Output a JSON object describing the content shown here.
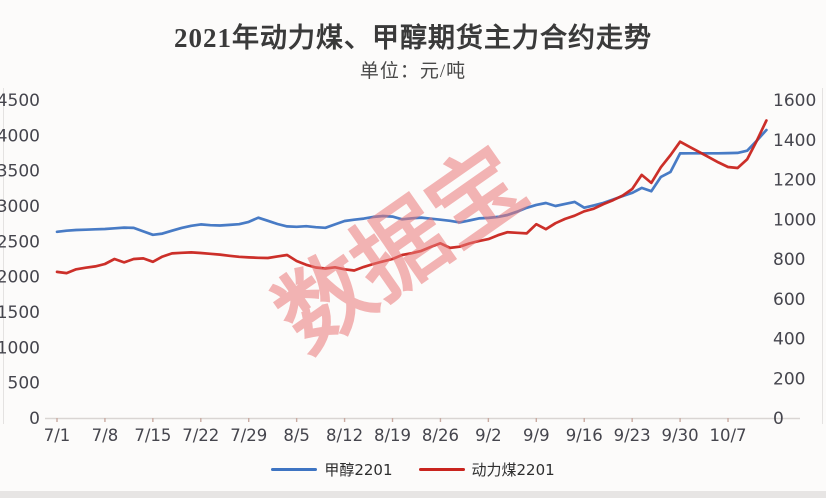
{
  "header": {
    "title": "2021年动力煤、甲醇期货主力合约走势",
    "subtitle": "单位：元/吨"
  },
  "watermark": {
    "text": "数据宝",
    "color": "rgba(233,120,120,0.55)"
  },
  "legend": {
    "items": [
      {
        "label": "甲醇2201",
        "color": "#3e74c2"
      },
      {
        "label": "动力煤2201",
        "color": "#c9241e"
      }
    ]
  },
  "chart_data": {
    "type": "line",
    "title": "2021年动力煤、甲醇期货主力合约走势",
    "subtitle": "单位：元/吨",
    "grid": false,
    "legend_position": "bottom",
    "x_labels": [
      "7/1",
      "7/8",
      "7/15",
      "7/22",
      "7/29",
      "8/5",
      "8/12",
      "8/19",
      "8/26",
      "9/2",
      "9/9",
      "9/16",
      "9/23",
      "9/30",
      "10/7"
    ],
    "points_per_label": 5,
    "left_axis": {
      "min": 0,
      "max": 4500,
      "step": 500,
      "ticks": [
        "4500",
        "4000",
        "3500",
        "3000",
        "2500",
        "2000",
        "1500",
        "1000",
        "500",
        "0"
      ]
    },
    "right_axis": {
      "min": 0,
      "max": 1600,
      "step": 200,
      "ticks": [
        "1600",
        "1400",
        "1200",
        "1000",
        "800",
        "600",
        "400",
        "200",
        "0"
      ]
    },
    "series": [
      {
        "name": "甲醇2201",
        "axis": "left",
        "color": "#3e74c2",
        "values": [
          2635,
          2650,
          2660,
          2665,
          2670,
          2675,
          2685,
          2695,
          2690,
          2640,
          2592,
          2610,
          2650,
          2690,
          2720,
          2740,
          2728,
          2724,
          2732,
          2742,
          2775,
          2835,
          2790,
          2745,
          2712,
          2705,
          2714,
          2700,
          2692,
          2740,
          2788,
          2806,
          2822,
          2846,
          2858,
          2850,
          2812,
          2826,
          2836,
          2820,
          2806,
          2790,
          2768,
          2795,
          2824,
          2832,
          2846,
          2872,
          2920,
          2974,
          3016,
          3042,
          3000,
          3030,
          3058,
          2976,
          3008,
          3044,
          3092,
          3140,
          3186,
          3256,
          3210,
          3412,
          3482,
          3744,
          3746,
          3746,
          3746,
          3746,
          3748,
          3752,
          3782,
          3924,
          4076
        ]
      },
      {
        "name": "动力煤2201",
        "axis": "right",
        "color": "#c9241e",
        "values": [
          735,
          729,
          748,
          756,
          763,
          775,
          800,
          783,
          800,
          803,
          786,
          812,
          828,
          831,
          833,
          830,
          826,
          822,
          816,
          811,
          808,
          806,
          805,
          813,
          820,
          790,
          771,
          757,
          752,
          758,
          748,
          742,
          760,
          775,
          788,
          800,
          820,
          829,
          841,
          861,
          879,
          856,
          862,
          878,
          890,
          900,
          920,
          935,
          932,
          929,
          975,
          950,
          980,
          1002,
          1018,
          1040,
          1053,
          1076,
          1096,
          1119,
          1152,
          1223,
          1183,
          1262,
          1323,
          1390,
          1364,
          1338,
          1312,
          1286,
          1263,
          1258,
          1302,
          1395,
          1497
        ]
      }
    ]
  }
}
